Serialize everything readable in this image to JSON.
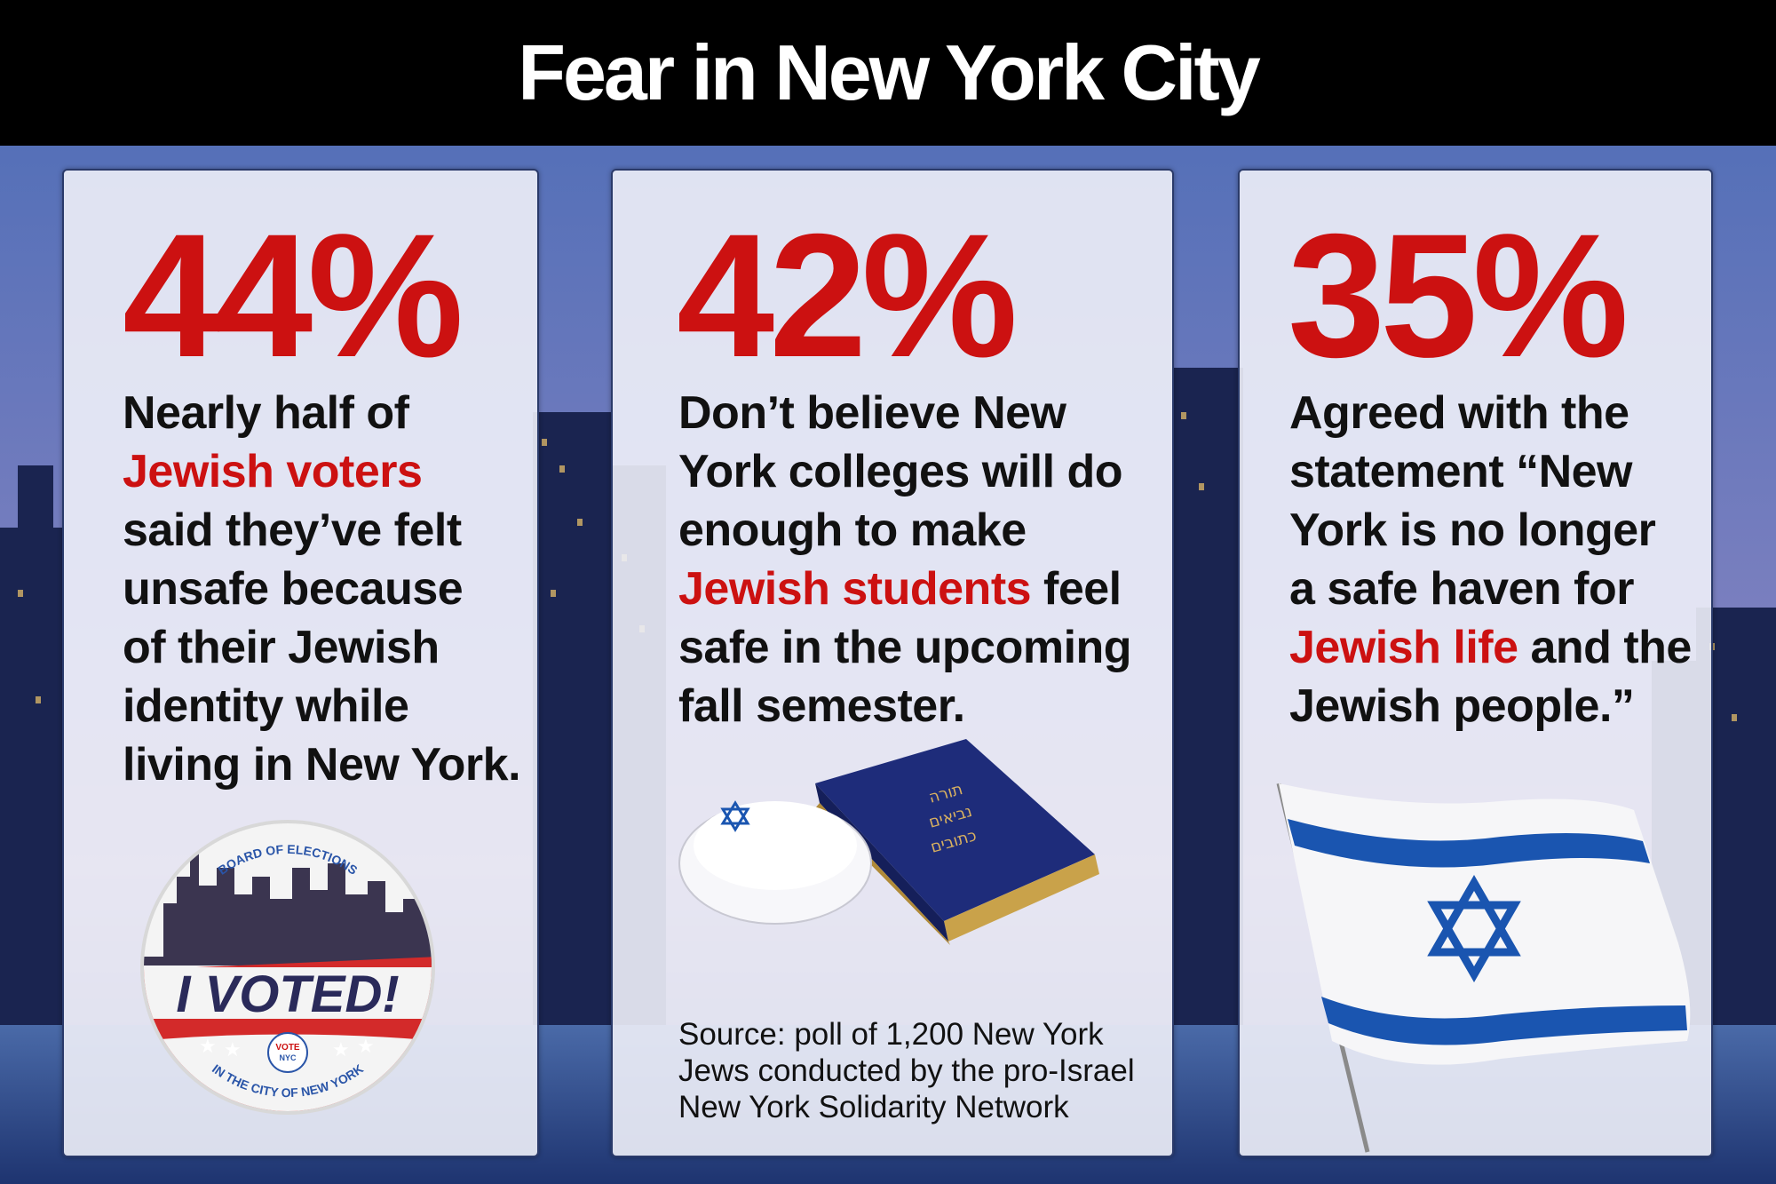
{
  "header": {
    "title": "Fear in New York City"
  },
  "panels": [
    {
      "percent": "44%",
      "text": {
        "line1": "Nearly half of",
        "highlight": "Jewish voters",
        "line3": "said they’ve felt",
        "line4": "unsafe because",
        "line5": "of their Jewish",
        "line6": "identity while",
        "line7": "living in New York."
      },
      "image": {
        "name": "i-voted-sticker",
        "top_text": "BOARD OF ELECTIONS",
        "main_text": "I VOTED!",
        "badge_line1": "VOTE",
        "badge_line2": "NYC",
        "bottom_text": "IN THE CITY OF NEW YORK"
      }
    },
    {
      "percent": "42%",
      "text": {
        "line1": "Don’t believe New",
        "line2": "York colleges will do",
        "line3": "enough to make",
        "highlight": "Jewish students",
        "line4_rest": " feel",
        "line5": "safe in the upcoming",
        "line6": "fall semester."
      },
      "image": {
        "name": "kippah-and-book",
        "book_text": [
          "תורה",
          "נביאים",
          "כתובים"
        ]
      },
      "source": {
        "line1": "Source: poll of 1,200 New York",
        "line2": "Jews conducted by the pro-Israel",
        "line3": "New York Solidarity Network"
      }
    },
    {
      "percent": "35%",
      "text": {
        "line1": "Agreed with the",
        "line2": "statement “New",
        "line3": "York is no longer",
        "line4": "a safe haven for",
        "highlight": "Jewish life",
        "line5_rest": " and the",
        "line6": "Jewish people.”"
      },
      "image": {
        "name": "israel-flag"
      }
    }
  ],
  "colors": {
    "accent_red": "#cc1111",
    "header_bg": "#000000",
    "flag_blue": "#1a55b0"
  }
}
